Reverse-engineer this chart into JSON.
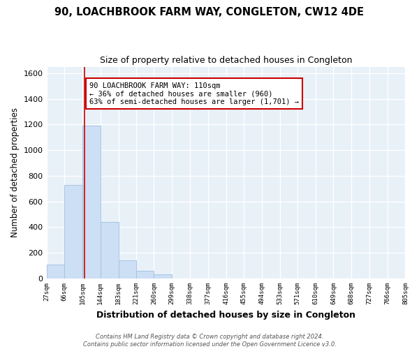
{
  "title": "90, LOACHBROOK FARM WAY, CONGLETON, CW12 4DE",
  "subtitle": "Size of property relative to detached houses in Congleton",
  "xlabel": "Distribution of detached houses by size in Congleton",
  "ylabel": "Number of detached properties",
  "bar_edges": [
    27,
    66,
    105,
    144,
    183,
    221,
    260,
    299,
    338,
    377,
    416,
    455,
    494,
    533,
    571,
    610,
    649,
    688,
    727,
    766,
    805
  ],
  "bar_heights": [
    110,
    730,
    1190,
    440,
    140,
    60,
    35,
    0,
    0,
    0,
    0,
    0,
    0,
    0,
    0,
    0,
    0,
    0,
    0,
    0
  ],
  "bar_color": "#ccdff5",
  "bar_edgecolor": "#a0c0e0",
  "ylim": [
    0,
    1650
  ],
  "yticks": [
    0,
    200,
    400,
    600,
    800,
    1000,
    1200,
    1400,
    1600
  ],
  "vline_x": 110,
  "vline_color": "#cc0000",
  "annotation_line1": "90 LOACHBROOK FARM WAY: 110sqm",
  "annotation_line2": "← 36% of detached houses are smaller (960)",
  "annotation_line3": "63% of semi-detached houses are larger (1,701) →",
  "annotation_box_edgecolor": "#cc0000",
  "annotation_box_facecolor": "#ffffff",
  "footer_line1": "Contains HM Land Registry data © Crown copyright and database right 2024.",
  "footer_line2": "Contains public sector information licensed under the Open Government Licence v3.0.",
  "background_color": "#ffffff",
  "plot_bg_color": "#e8f0f8",
  "grid_color": "#ffffff",
  "tick_labels": [
    "27sqm",
    "66sqm",
    "105sqm",
    "144sqm",
    "183sqm",
    "221sqm",
    "260sqm",
    "299sqm",
    "338sqm",
    "377sqm",
    "416sqm",
    "455sqm",
    "494sqm",
    "533sqm",
    "571sqm",
    "610sqm",
    "649sqm",
    "688sqm",
    "727sqm",
    "766sqm",
    "805sqm"
  ],
  "title_fontsize": 10.5,
  "subtitle_fontsize": 9,
  "ylabel_fontsize": 8.5,
  "xlabel_fontsize": 9
}
